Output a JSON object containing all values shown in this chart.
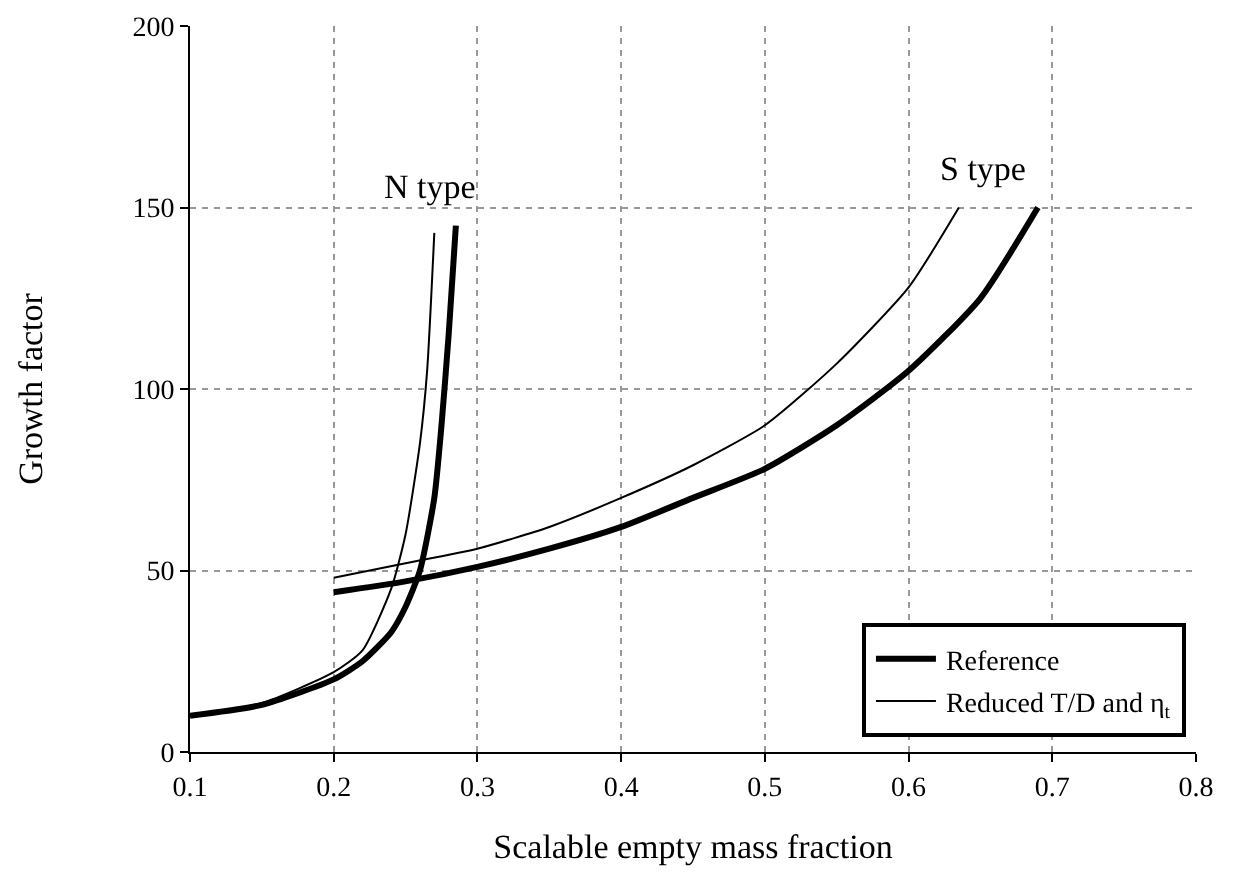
{
  "chart_data": {
    "type": "line",
    "xlabel": "Scalable empty mass fraction",
    "ylabel": "Growth factor",
    "xlim": [
      0.1,
      0.8
    ],
    "xticks": [
      0.1,
      0.2,
      0.3,
      0.4,
      0.5,
      0.6,
      0.7,
      0.8
    ],
    "ylim": [
      0,
      200
    ],
    "yticks": [
      0,
      50,
      100,
      150,
      200
    ],
    "grid": true,
    "legend": "bottom right",
    "marker": "none",
    "line_style": "solid",
    "series": [
      {
        "name": "Reference",
        "color": "#000000",
        "x": [
          0.1,
          0.15,
          0.2,
          0.22,
          0.24,
          0.25,
          0.26,
          0.27,
          0.275,
          0.28,
          0.285
        ],
        "values": [
          10,
          13,
          20,
          25,
          33,
          40,
          50,
          70,
          90,
          115,
          145
        ]
      },
      {
        "name": "Reduced T/D and η$_{t}$",
        "color": "#000000",
        "x": [
          0.1,
          0.15,
          0.2,
          0.22,
          0.24,
          0.25,
          0.26,
          0.265,
          0.27
        ],
        "values": [
          10,
          13.5,
          22,
          28,
          45,
          60,
          85,
          105,
          143
        ]
      },
      {
        "color": "#000000",
        "x": [
          0.2,
          0.25,
          0.3,
          0.35,
          0.4,
          0.45,
          0.5,
          0.55,
          0.6,
          0.65,
          0.69
        ],
        "values": [
          44,
          47,
          51,
          56,
          62,
          70,
          78,
          90,
          105,
          125,
          150
        ]
      },
      {
        "color": "#000000",
        "x": [
          0.2,
          0.25,
          0.3,
          0.35,
          0.4,
          0.45,
          0.5,
          0.55,
          0.6,
          0.635
        ],
        "values": [
          48,
          52,
          56,
          62,
          70,
          79,
          90,
          107,
          128,
          150
        ]
      }
    ],
    "annotations": [
      "N type",
      "S type"
    ]
  }
}
